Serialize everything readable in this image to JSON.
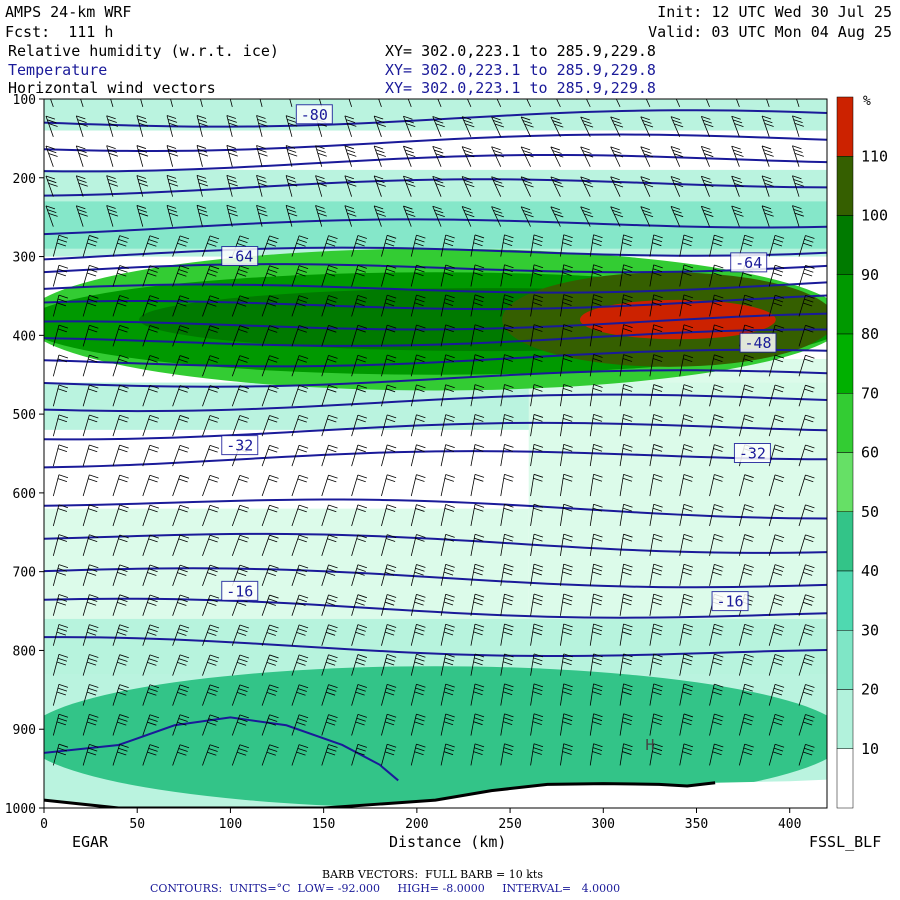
{
  "header": {
    "model": "AMPS 24-km WRF",
    "init": "Init: 12 UTC Wed 30 Jul 25",
    "fcst": "Fcst:  111 h",
    "valid": "Valid: 03 UTC Mon 04 Aug 25",
    "fields": [
      {
        "name": "Relative humidity (w.r.t. ice)",
        "xy": "XY= 302.0,223.1 to 285.9,229.8"
      },
      {
        "name": "Temperature",
        "xy": "XY= 302.0,223.1 to 285.9,229.8"
      },
      {
        "name": "Horizontal wind vectors",
        "xy": "XY= 302.0,223.1 to 285.9,229.8"
      }
    ]
  },
  "footer": {
    "left_station": "EGAR",
    "right_station": "FSSL_BLF",
    "barb_note": "BARB VECTORS:  FULL BARB = 10 kts",
    "contour_note": "CONTOURS:  UNITS=°C  LOW= -92.000     HIGH= -8.0000     INTERVAL=   4.0000"
  },
  "colors": {
    "temperature_line": "#1a1a99",
    "barb": "#000000",
    "rh_scale": [
      "#ffffff",
      "#ffffff",
      "#d8fbe8",
      "#b2f2dc",
      "#7fe6c6",
      "#4fd9b0",
      "#33c488",
      "#66e066",
      "#33cc33",
      "#00b000",
      "#009900",
      "#007a00",
      "#355f00",
      "#cc2200"
    ]
  },
  "chart_data": {
    "type": "heatmap",
    "title": "Relative humidity (w.r.t. ice)",
    "xlabel": "Distance (km)",
    "ylabel": "",
    "x_ticks": [
      0,
      50,
      100,
      150,
      200,
      250,
      300,
      350,
      400
    ],
    "y_ticks": [
      100,
      200,
      300,
      400,
      500,
      600,
      700,
      800,
      900,
      1000
    ],
    "xlim": [
      0,
      420
    ],
    "ylim": [
      1000,
      100
    ],
    "colorbar": {
      "unit": "%",
      "levels": [
        10,
        20,
        30,
        40,
        50,
        60,
        70,
        80,
        90,
        100,
        110
      ]
    },
    "rh_regions": [
      {
        "level": 40,
        "x_from": 0,
        "x_to": 420,
        "p_from": 820,
        "p_to": 1000
      },
      {
        "level": 60,
        "x_from": 0,
        "x_to": 420,
        "p_from": 290,
        "p_to": 470
      },
      {
        "level": 80,
        "x_from": 0,
        "x_to": 420,
        "p_from": 320,
        "p_to": 450
      },
      {
        "level": 90,
        "x_from": 60,
        "x_to": 420,
        "p_from": 340,
        "p_to": 420
      },
      {
        "level": 100,
        "x_from": 250,
        "x_to": 420,
        "p_from": 320,
        "p_to": 440
      },
      {
        "level": 110,
        "x_from": 290,
        "x_to": 390,
        "p_from": 355,
        "p_to": 405
      }
    ],
    "temperature_labels": [
      {
        "value": "-80",
        "x": 145,
        "p": 120
      },
      {
        "value": "-64",
        "x": 105,
        "p": 300
      },
      {
        "value": "-64",
        "x": 378,
        "p": 308
      },
      {
        "value": "-48",
        "x": 383,
        "p": 410
      },
      {
        "value": "-32",
        "x": 105,
        "p": 540
      },
      {
        "value": "-32",
        "x": 380,
        "p": 550
      },
      {
        "value": "-16",
        "x": 105,
        "p": 725
      },
      {
        "value": "-16",
        "x": 368,
        "p": 738
      }
    ],
    "annotations": [
      {
        "text": "H",
        "x": 325,
        "p": 920
      }
    ]
  }
}
